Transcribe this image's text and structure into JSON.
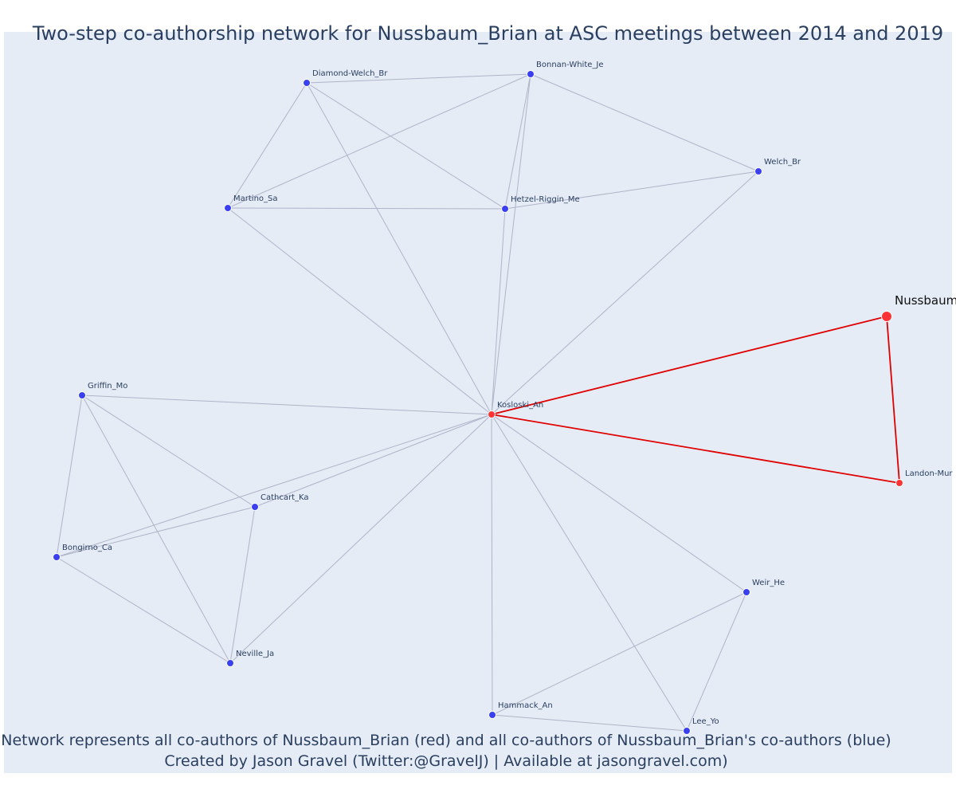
{
  "title": "Two-step co-authorship network for Nussbaum_Brian at ASC meetings between 2014 and 2019",
  "caption": {
    "line1": "Network represents all co-authors of Nussbaum_Brian (red) and all co-authors of Nussbaum_Brian's co-authors (blue)",
    "line2": "Created by Jason Gravel (Twitter:@GravelJ) | Available at jasongravel.com)"
  },
  "colors": {
    "background": "#e5ecf6",
    "edge_default": "#b0b4c8",
    "edge_highlight": "#e00000",
    "node_coauthor": "#ff3333",
    "node_second_step": "#3a3ff0",
    "title_text": "#2a3f5f"
  },
  "nodes": [
    {
      "id": "Nussbaum_Brian",
      "label": "Nussbaum_Brian",
      "group": "focal"
    },
    {
      "id": "Kosloski_An",
      "label": "Kosloski_An",
      "group": "coauthor"
    },
    {
      "id": "Landon-Mur",
      "label": "Landon-Mur",
      "group": "coauthor"
    },
    {
      "id": "Diamond-Welch_Br",
      "label": "Diamond-Welch_Br",
      "group": "second"
    },
    {
      "id": "Bonnan-White_Je",
      "label": "Bonnan-White_Je",
      "group": "second"
    },
    {
      "id": "Welch_Br",
      "label": "Welch_Br",
      "group": "second"
    },
    {
      "id": "Martino_Sa",
      "label": "Martino_Sa",
      "group": "second"
    },
    {
      "id": "Hetzel-Riggin_Me",
      "label": "Hetzel-Riggin_Me",
      "group": "second"
    },
    {
      "id": "Griffin_Mo",
      "label": "Griffin_Mo",
      "group": "second"
    },
    {
      "id": "Cathcart_Ka",
      "label": "Cathcart_Ka",
      "group": "second"
    },
    {
      "id": "Bongirno_Ca",
      "label": "Bongirno_Ca",
      "group": "second"
    },
    {
      "id": "Neville_Ja",
      "label": "Neville_Ja",
      "group": "second"
    },
    {
      "id": "Weir_He",
      "label": "Weir_He",
      "group": "second"
    },
    {
      "id": "Hammack_An",
      "label": "Hammack_An",
      "group": "second"
    },
    {
      "id": "Lee_Yo",
      "label": "Lee_Yo",
      "group": "second"
    }
  ],
  "edges": [
    {
      "source": "Nussbaum_Brian",
      "target": "Kosloski_An",
      "highlight": true
    },
    {
      "source": "Nussbaum_Brian",
      "target": "Landon-Mur",
      "highlight": true
    },
    {
      "source": "Kosloski_An",
      "target": "Landon-Mur",
      "highlight": true
    },
    {
      "source": "Diamond-Welch_Br",
      "target": "Bonnan-White_Je",
      "highlight": false
    },
    {
      "source": "Diamond-Welch_Br",
      "target": "Martino_Sa",
      "highlight": false
    },
    {
      "source": "Diamond-Welch_Br",
      "target": "Hetzel-Riggin_Me",
      "highlight": false
    },
    {
      "source": "Diamond-Welch_Br",
      "target": "Kosloski_An",
      "highlight": false
    },
    {
      "source": "Bonnan-White_Je",
      "target": "Welch_Br",
      "highlight": false
    },
    {
      "source": "Bonnan-White_Je",
      "target": "Martino_Sa",
      "highlight": false
    },
    {
      "source": "Bonnan-White_Je",
      "target": "Hetzel-Riggin_Me",
      "highlight": false
    },
    {
      "source": "Bonnan-White_Je",
      "target": "Kosloski_An",
      "highlight": false
    },
    {
      "source": "Welch_Br",
      "target": "Hetzel-Riggin_Me",
      "highlight": false
    },
    {
      "source": "Welch_Br",
      "target": "Kosloski_An",
      "highlight": false
    },
    {
      "source": "Martino_Sa",
      "target": "Hetzel-Riggin_Me",
      "highlight": false
    },
    {
      "source": "Martino_Sa",
      "target": "Kosloski_An",
      "highlight": false
    },
    {
      "source": "Hetzel-Riggin_Me",
      "target": "Kosloski_An",
      "highlight": false
    },
    {
      "source": "Griffin_Mo",
      "target": "Kosloski_An",
      "highlight": false
    },
    {
      "source": "Griffin_Mo",
      "target": "Cathcart_Ka",
      "highlight": false
    },
    {
      "source": "Griffin_Mo",
      "target": "Bongirno_Ca",
      "highlight": false
    },
    {
      "source": "Griffin_Mo",
      "target": "Neville_Ja",
      "highlight": false
    },
    {
      "source": "Cathcart_Ka",
      "target": "Kosloski_An",
      "highlight": false
    },
    {
      "source": "Cathcart_Ka",
      "target": "Bongirno_Ca",
      "highlight": false
    },
    {
      "source": "Cathcart_Ka",
      "target": "Neville_Ja",
      "highlight": false
    },
    {
      "source": "Bongirno_Ca",
      "target": "Kosloski_An",
      "highlight": false
    },
    {
      "source": "Bongirno_Ca",
      "target": "Neville_Ja",
      "highlight": false
    },
    {
      "source": "Neville_Ja",
      "target": "Kosloski_An",
      "highlight": false
    },
    {
      "source": "Weir_He",
      "target": "Kosloski_An",
      "highlight": false
    },
    {
      "source": "Weir_He",
      "target": "Hammack_An",
      "highlight": false
    },
    {
      "source": "Weir_He",
      "target": "Lee_Yo",
      "highlight": false
    },
    {
      "source": "Hammack_An",
      "target": "Kosloski_An",
      "highlight": false
    },
    {
      "source": "Hammack_An",
      "target": "Lee_Yo",
      "highlight": false
    },
    {
      "source": "Lee_Yo",
      "target": "Kosloski_An",
      "highlight": false
    }
  ]
}
